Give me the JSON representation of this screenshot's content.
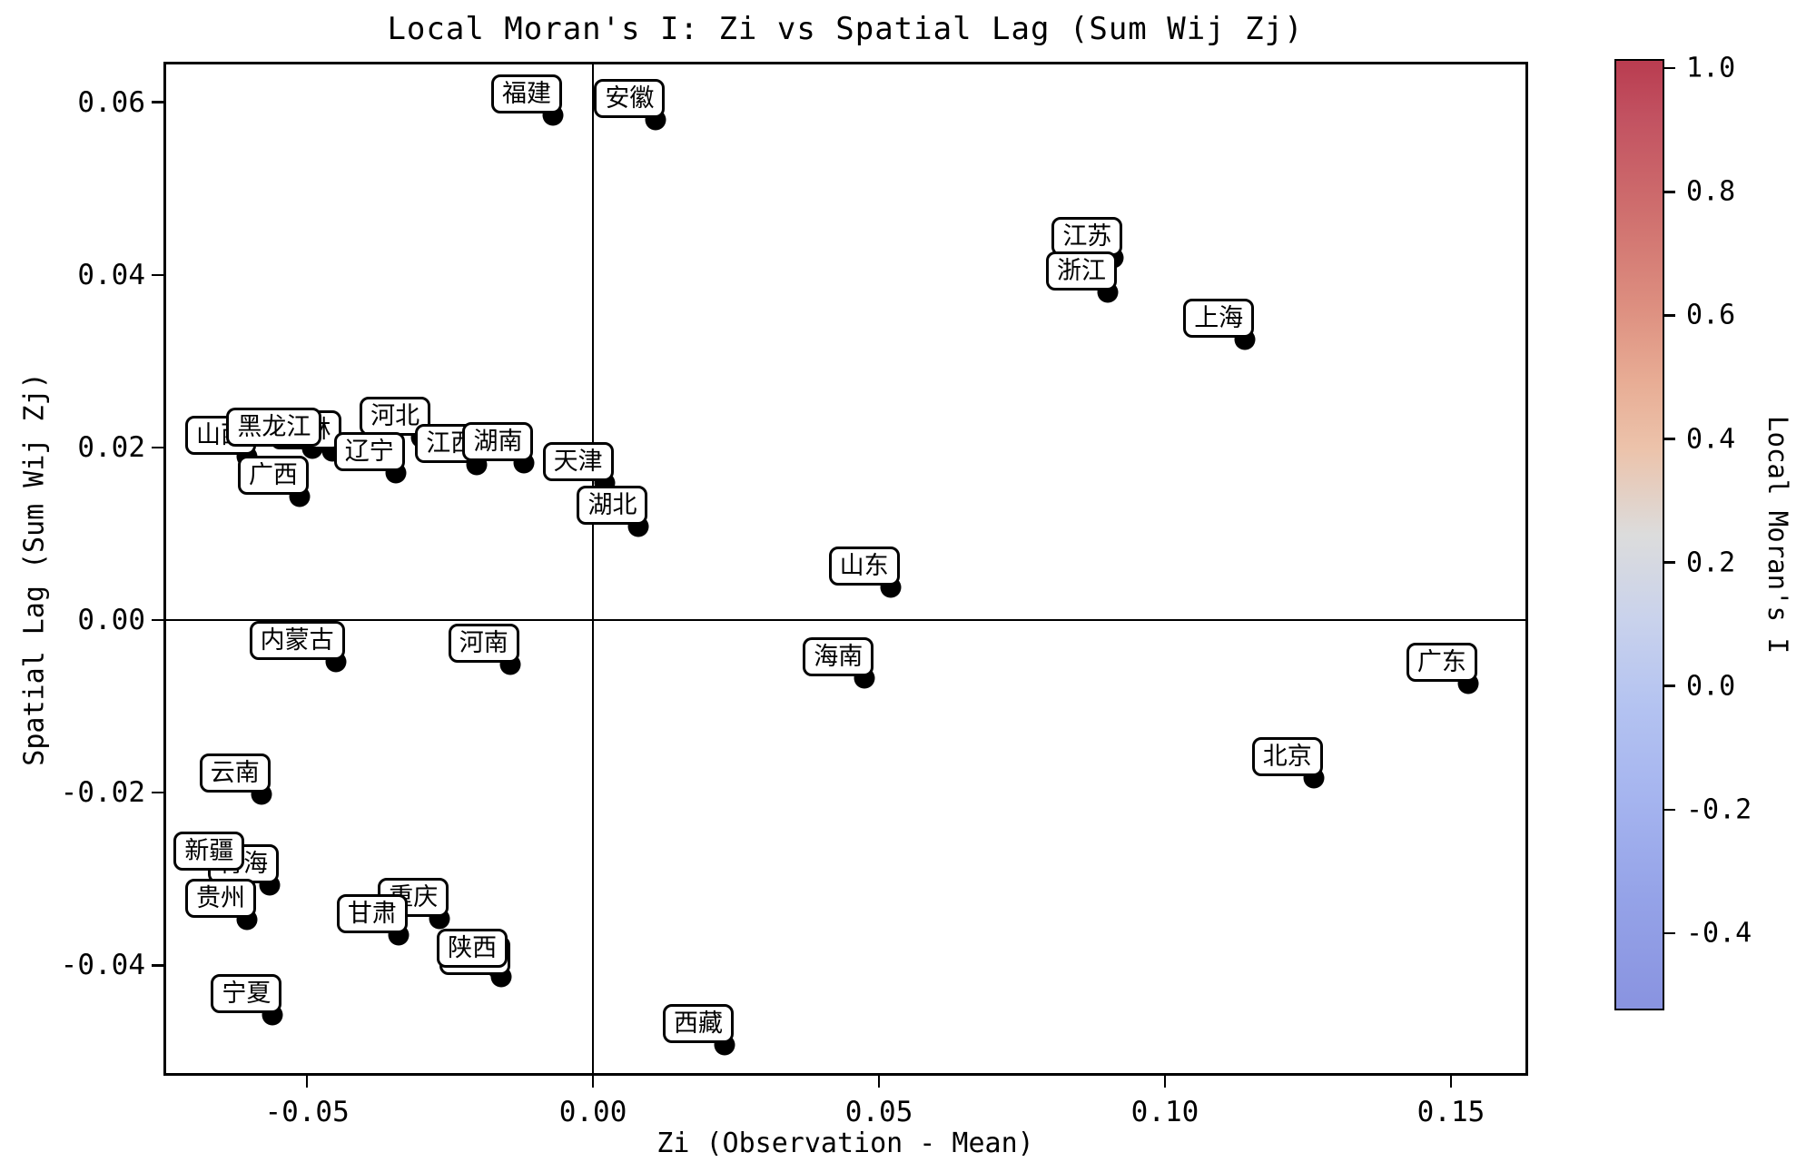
{
  "title": "Local Moran's I: Zi vs Spatial Lag (Sum Wij Zj)",
  "chart_data": {
    "type": "scatter",
    "title": "Local Moran's I: Zi vs Spatial Lag (Sum Wij Zj)",
    "xlabel": "Zi (Observation - Mean)",
    "ylabel": "Spatial Lag (Sum Wij Zj)",
    "xlim": [
      -0.0751,
      0.1635
    ],
    "ylim": [
      -0.0528,
      0.0647
    ],
    "grid": false,
    "reference_lines": {
      "vertical_at_x": 0.0,
      "horizontal_at_y": 0.0
    },
    "x_ticks": [
      {
        "value": -0.05,
        "label": "-0.05"
      },
      {
        "value": 0.0,
        "label": "0.00"
      },
      {
        "value": 0.05,
        "label": "0.05"
      },
      {
        "value": 0.1,
        "label": "0.10"
      },
      {
        "value": 0.15,
        "label": "0.15"
      }
    ],
    "y_ticks": [
      {
        "value": 0.06,
        "label": "0.06"
      },
      {
        "value": 0.04,
        "label": "0.04"
      },
      {
        "value": 0.02,
        "label": "0.02"
      },
      {
        "value": 0.0,
        "label": "0.00"
      },
      {
        "value": -0.02,
        "label": "-0.02"
      },
      {
        "value": -0.04,
        "label": "-0.04"
      }
    ],
    "colorbar": {
      "label": "Local Moran's I",
      "colormap": "coolwarm",
      "vmin": -0.525,
      "vmax": 1.015,
      "ticks": [
        {
          "value": 1.0,
          "label": "1.0"
        },
        {
          "value": 0.8,
          "label": "0.8"
        },
        {
          "value": 0.6,
          "label": "0.6"
        },
        {
          "value": 0.4,
          "label": "0.4"
        },
        {
          "value": 0.2,
          "label": "0.2"
        },
        {
          "value": 0.0,
          "label": "0.0"
        },
        {
          "value": -0.2,
          "label": "-0.2"
        },
        {
          "value": -0.4,
          "label": "-0.4"
        }
      ]
    },
    "marker_color": "#000000",
    "label_box": {
      "background": "#ffffff",
      "border": "#000000"
    },
    "points_note": "points listed in draw order (later = on top); x = Zi, y = spatial lag",
    "points": [
      {
        "name": "青海",
        "x": -0.0565,
        "y": -0.0307
      },
      {
        "name": "吉林",
        "x": -0.0455,
        "y": 0.0196
      },
      {
        "name": "四川",
        "x": -0.016,
        "y": -0.0413
      },
      {
        "name": "山西",
        "x": -0.0605,
        "y": 0.0189
      },
      {
        "name": "黑龙江",
        "x": -0.049,
        "y": 0.0199
      },
      {
        "name": "河北",
        "x": -0.03,
        "y": 0.0211
      },
      {
        "name": "辽宁",
        "x": -0.0345,
        "y": 0.0171
      },
      {
        "name": "江西",
        "x": -0.0203,
        "y": 0.018
      },
      {
        "name": "湖南",
        "x": -0.012,
        "y": 0.0182
      },
      {
        "name": "广西",
        "x": -0.0513,
        "y": 0.0143
      },
      {
        "name": "新疆",
        "x": -0.0625,
        "y": -0.0292
      },
      {
        "name": "贵州",
        "x": -0.0605,
        "y": -0.0347
      },
      {
        "name": "重庆",
        "x": -0.0268,
        "y": -0.0346
      },
      {
        "name": "甘肃",
        "x": -0.034,
        "y": -0.0365
      },
      {
        "name": "陕西",
        "x": -0.0165,
        "y": -0.0405
      },
      {
        "name": "宁夏",
        "x": -0.056,
        "y": -0.0457
      },
      {
        "name": "云南",
        "x": -0.058,
        "y": -0.0202
      },
      {
        "name": "内蒙古",
        "x": -0.045,
        "y": -0.0048
      },
      {
        "name": "河南",
        "x": -0.0145,
        "y": -0.0051
      },
      {
        "name": "天津",
        "x": 0.002,
        "y": 0.0159
      },
      {
        "name": "湖北",
        "x": 0.008,
        "y": 0.0108
      },
      {
        "name": "福建",
        "x": -0.007,
        "y": 0.0585
      },
      {
        "name": "安徽",
        "x": 0.011,
        "y": 0.058
      },
      {
        "name": "江苏",
        "x": 0.091,
        "y": 0.042
      },
      {
        "name": "浙江",
        "x": 0.09,
        "y": 0.038
      },
      {
        "name": "上海",
        "x": 0.114,
        "y": 0.0325
      },
      {
        "name": "山东",
        "x": 0.052,
        "y": 0.0038
      },
      {
        "name": "海南",
        "x": 0.0475,
        "y": -0.0067
      },
      {
        "name": "广东",
        "x": 0.153,
        "y": -0.0074
      },
      {
        "name": "北京",
        "x": 0.126,
        "y": -0.0183
      },
      {
        "name": "西藏",
        "x": 0.023,
        "y": -0.0492
      }
    ]
  }
}
